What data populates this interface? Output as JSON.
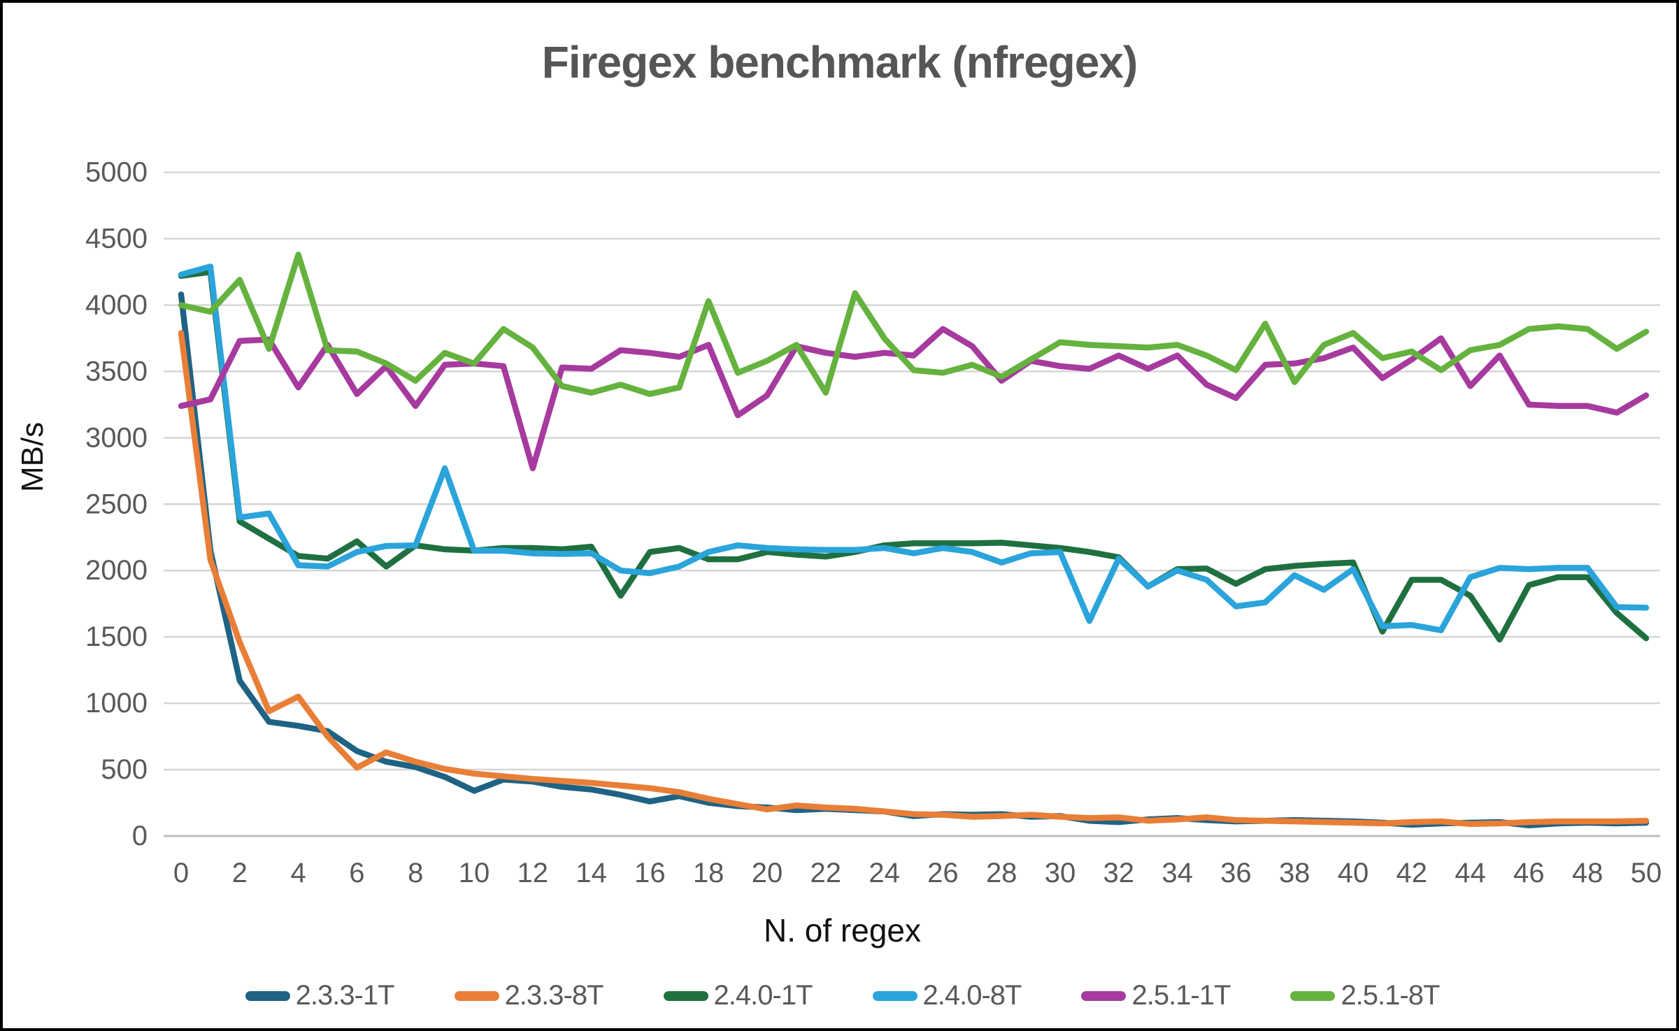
{
  "chart_data": {
    "type": "line",
    "title": "Firegex benchmark (nfregex)",
    "xlabel": "N. of regex",
    "ylabel": "MB/s",
    "xlim": [
      0,
      50
    ],
    "x_tick_step": 2,
    "ylim": [
      0,
      5000
    ],
    "y_tick_step": 500,
    "grid": true,
    "legend_position": "bottom",
    "colors": {
      "background": "#FFFFFF",
      "frame_border": "#000000",
      "gridline": "#D6D6D6",
      "axis_line": "#BFBFBF",
      "tick_text": "#595959",
      "title_text": "#565656",
      "axis_title_text": "#111111"
    },
    "x_values": [
      0,
      1,
      2,
      3,
      4,
      5,
      6,
      7,
      8,
      9,
      10,
      11,
      12,
      13,
      14,
      15,
      16,
      17,
      18,
      19,
      20,
      21,
      22,
      23,
      24,
      25,
      26,
      27,
      28,
      29,
      30,
      31,
      32,
      33,
      34,
      35,
      36,
      37,
      38,
      39,
      40,
      41,
      42,
      43,
      44,
      45,
      46,
      47,
      48,
      49,
      50
    ],
    "series": [
      {
        "name": "2.3.3-1T",
        "color": "#1F6384",
        "values": [
          4080,
          2150,
          1170,
          860,
          830,
          790,
          640,
          560,
          520,
          445,
          340,
          425,
          410,
          370,
          350,
          310,
          260,
          300,
          250,
          225,
          215,
          195,
          205,
          195,
          185,
          150,
          165,
          160,
          165,
          145,
          150,
          115,
          105,
          125,
          135,
          120,
          110,
          115,
          120,
          115,
          110,
          100,
          85,
          95,
          100,
          105,
          80,
          95,
          100,
          95,
          100
        ]
      },
      {
        "name": "2.3.3-8T",
        "color": "#E97E37",
        "values": [
          3790,
          2080,
          1460,
          940,
          1050,
          750,
          515,
          630,
          560,
          505,
          470,
          450,
          430,
          415,
          400,
          380,
          360,
          330,
          280,
          240,
          200,
          230,
          215,
          205,
          185,
          165,
          160,
          145,
          150,
          160,
          145,
          135,
          140,
          115,
          125,
          140,
          120,
          115,
          110,
          105,
          100,
          95,
          105,
          110,
          90,
          95,
          105,
          110,
          110,
          110,
          115
        ]
      },
      {
        "name": "2.4.0-1T",
        "color": "#1F7040",
        "values": [
          4220,
          4250,
          2370,
          2240,
          2110,
          2090,
          2220,
          2030,
          2190,
          2160,
          2150,
          2170,
          2170,
          2160,
          2180,
          1810,
          2140,
          2170,
          2085,
          2085,
          2140,
          2120,
          2105,
          2140,
          2190,
          2205,
          2205,
          2205,
          2210,
          2190,
          2170,
          2140,
          2100,
          1880,
          2010,
          2015,
          1900,
          2010,
          2035,
          2050,
          2060,
          1540,
          1930,
          1930,
          1810,
          1480,
          1890,
          1950,
          1950,
          1680,
          1490
        ]
      },
      {
        "name": "2.4.0-8T",
        "color": "#2AA4DB",
        "values": [
          4230,
          4290,
          2400,
          2430,
          2040,
          2030,
          2140,
          2185,
          2190,
          2770,
          2150,
          2150,
          2130,
          2125,
          2130,
          2000,
          1980,
          2030,
          2140,
          2190,
          2170,
          2160,
          2155,
          2155,
          2170,
          2130,
          2170,
          2140,
          2060,
          2130,
          2140,
          1620,
          2090,
          1880,
          2000,
          1930,
          1730,
          1760,
          1965,
          1855,
          2010,
          1580,
          1590,
          1550,
          1950,
          2020,
          2010,
          2020,
          2020,
          1725,
          1720
        ]
      },
      {
        "name": "2.5.1-1T",
        "color": "#A63A9E",
        "values": [
          3240,
          3290,
          3730,
          3740,
          3380,
          3700,
          3330,
          3540,
          3240,
          3550,
          3560,
          3540,
          2770,
          3530,
          3520,
          3660,
          3640,
          3610,
          3700,
          3170,
          3320,
          3690,
          3640,
          3610,
          3640,
          3620,
          3820,
          3690,
          3430,
          3580,
          3540,
          3520,
          3620,
          3520,
          3620,
          3400,
          3300,
          3550,
          3560,
          3600,
          3680,
          3450,
          3590,
          3750,
          3390,
          3620,
          3250,
          3240,
          3240,
          3190,
          3320
        ]
      },
      {
        "name": "2.5.1-8T",
        "color": "#65B23E",
        "values": [
          4000,
          3950,
          4190,
          3670,
          4380,
          3660,
          3650,
          3560,
          3430,
          3640,
          3560,
          3820,
          3680,
          3390,
          3340,
          3400,
          3330,
          3380,
          4030,
          3490,
          3580,
          3700,
          3340,
          4090,
          3750,
          3510,
          3490,
          3550,
          3460,
          3590,
          3720,
          3700,
          3690,
          3680,
          3700,
          3620,
          3510,
          3860,
          3420,
          3700,
          3790,
          3600,
          3650,
          3510,
          3660,
          3700,
          3820,
          3840,
          3820,
          3670,
          3800
        ]
      }
    ]
  }
}
